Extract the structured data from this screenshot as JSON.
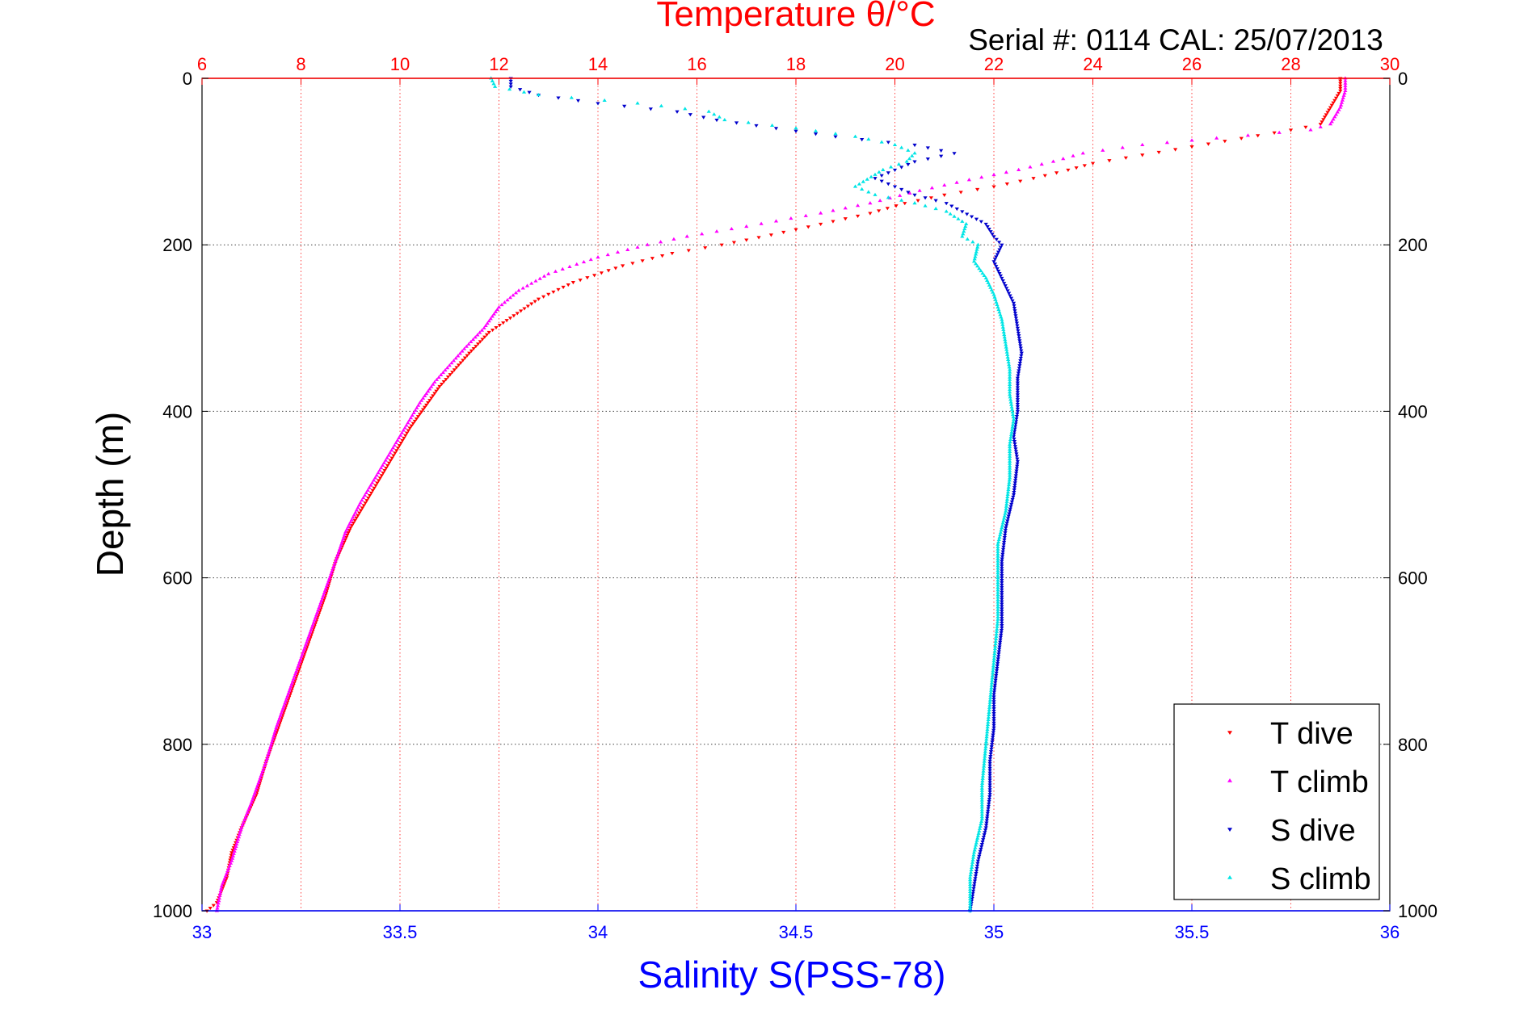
{
  "chart_data": {
    "type": "scatter",
    "title": "Temperature θ/°C",
    "subtitle": "Serial #: 0114  CAL: 25/07/2013",
    "ylabel": "Depth (m)",
    "xlabel_bottom": "Salinity S(PSS-78)",
    "xlabel_top": "Temperature θ/°C",
    "y_reversed": true,
    "ylim": [
      0,
      1000
    ],
    "xlim_salinity": [
      33,
      36
    ],
    "xlim_temperature": [
      6,
      30
    ],
    "yticks": [
      0,
      200,
      400,
      600,
      800,
      1000
    ],
    "salinity_ticks": [
      33,
      33.5,
      34,
      34.5,
      35,
      35.5,
      36
    ],
    "temperature_ticks": [
      6,
      8,
      10,
      12,
      14,
      16,
      18,
      20,
      22,
      24,
      26,
      28,
      30
    ],
    "grid": true,
    "legend_position": "bottom-right",
    "colors": {
      "temperature_axis": "#ff0000",
      "salinity_axis": "#0000ff",
      "t_dive": "#ff0000",
      "t_climb": "#ff00ff",
      "s_dive": "#0000cc",
      "s_climb": "#00e5e5"
    },
    "series": [
      {
        "name": "T dive",
        "axis": "temperature",
        "marker": "down-triangle",
        "points": [
          [
            29.0,
            0
          ],
          [
            29.0,
            15
          ],
          [
            28.8,
            35
          ],
          [
            28.6,
            55
          ],
          [
            28.0,
            62
          ],
          [
            27.0,
            72
          ],
          [
            26.0,
            82
          ],
          [
            25.0,
            92
          ],
          [
            24.0,
            102
          ],
          [
            23.5,
            110
          ],
          [
            22.8,
            120
          ],
          [
            22.0,
            130
          ],
          [
            21.0,
            140
          ],
          [
            20.2,
            150
          ],
          [
            19.5,
            162
          ],
          [
            18.5,
            175
          ],
          [
            17.5,
            188
          ],
          [
            16.5,
            200
          ],
          [
            15.5,
            210
          ],
          [
            14.5,
            225
          ],
          [
            13.5,
            245
          ],
          [
            12.8,
            265
          ],
          [
            12.3,
            285
          ],
          [
            11.8,
            305
          ],
          [
            11.4,
            330
          ],
          [
            11.1,
            350
          ],
          [
            10.8,
            370
          ],
          [
            10.5,
            395
          ],
          [
            10.2,
            420
          ],
          [
            9.9,
            450
          ],
          [
            9.6,
            480
          ],
          [
            9.3,
            510
          ],
          [
            9.0,
            540
          ],
          [
            8.7,
            580
          ],
          [
            8.5,
            620
          ],
          [
            8.2,
            670
          ],
          [
            7.9,
            720
          ],
          [
            7.6,
            770
          ],
          [
            7.3,
            820
          ],
          [
            7.1,
            860
          ],
          [
            6.8,
            900
          ],
          [
            6.6,
            930
          ],
          [
            6.5,
            960
          ],
          [
            6.3,
            990
          ],
          [
            6.1,
            1000
          ]
        ]
      },
      {
        "name": "T climb",
        "axis": "temperature",
        "marker": "up-triangle",
        "points": [
          [
            29.1,
            0
          ],
          [
            29.1,
            15
          ],
          [
            29.0,
            35
          ],
          [
            28.8,
            55
          ],
          [
            28.4,
            62
          ],
          [
            26.5,
            72
          ],
          [
            25.0,
            80
          ],
          [
            23.8,
            90
          ],
          [
            23.2,
            100
          ],
          [
            22.5,
            110
          ],
          [
            21.5,
            122
          ],
          [
            20.5,
            135
          ],
          [
            19.5,
            150
          ],
          [
            18.5,
            162
          ],
          [
            17.0,
            178
          ],
          [
            15.8,
            190
          ],
          [
            15.0,
            200
          ],
          [
            14.0,
            215
          ],
          [
            13.0,
            235
          ],
          [
            12.4,
            255
          ],
          [
            12.0,
            275
          ],
          [
            11.7,
            300
          ],
          [
            11.3,
            325
          ],
          [
            11.0,
            345
          ],
          [
            10.7,
            365
          ],
          [
            10.4,
            390
          ],
          [
            10.1,
            420
          ],
          [
            9.8,
            450
          ],
          [
            9.5,
            480
          ],
          [
            9.2,
            510
          ],
          [
            8.9,
            545
          ],
          [
            8.7,
            580
          ],
          [
            8.4,
            630
          ],
          [
            8.1,
            680
          ],
          [
            7.8,
            730
          ],
          [
            7.5,
            780
          ],
          [
            7.3,
            820
          ],
          [
            7.0,
            870
          ],
          [
            6.8,
            900
          ],
          [
            6.6,
            940
          ],
          [
            6.4,
            970
          ],
          [
            6.3,
            1000
          ]
        ]
      },
      {
        "name": "S dive",
        "axis": "salinity",
        "marker": "down-triangle",
        "points": [
          [
            33.78,
            0
          ],
          [
            33.78,
            10
          ],
          [
            33.85,
            20
          ],
          [
            34.0,
            30
          ],
          [
            34.2,
            40
          ],
          [
            34.3,
            50
          ],
          [
            34.45,
            60
          ],
          [
            34.6,
            70
          ],
          [
            34.8,
            80
          ],
          [
            34.9,
            90
          ],
          [
            34.8,
            100
          ],
          [
            34.75,
            110
          ],
          [
            34.7,
            120
          ],
          [
            34.75,
            130
          ],
          [
            34.8,
            140
          ],
          [
            34.88,
            150
          ],
          [
            34.92,
            160
          ],
          [
            34.98,
            175
          ],
          [
            35.0,
            190
          ],
          [
            35.02,
            200
          ],
          [
            35.0,
            220
          ],
          [
            35.02,
            240
          ],
          [
            35.05,
            270
          ],
          [
            35.06,
            300
          ],
          [
            35.07,
            330
          ],
          [
            35.06,
            360
          ],
          [
            35.06,
            400
          ],
          [
            35.05,
            430
          ],
          [
            35.06,
            460
          ],
          [
            35.05,
            500
          ],
          [
            35.03,
            540
          ],
          [
            35.02,
            580
          ],
          [
            35.02,
            620
          ],
          [
            35.02,
            660
          ],
          [
            35.01,
            700
          ],
          [
            35.0,
            740
          ],
          [
            35.0,
            780
          ],
          [
            34.99,
            820
          ],
          [
            34.99,
            860
          ],
          [
            34.98,
            900
          ],
          [
            34.96,
            940
          ],
          [
            34.95,
            970
          ],
          [
            34.94,
            1000
          ]
        ]
      },
      {
        "name": "S climb",
        "axis": "salinity",
        "marker": "up-triangle",
        "points": [
          [
            33.73,
            0
          ],
          [
            33.74,
            10
          ],
          [
            33.85,
            20
          ],
          [
            34.1,
            30
          ],
          [
            34.28,
            40
          ],
          [
            34.32,
            50
          ],
          [
            34.5,
            60
          ],
          [
            34.65,
            70
          ],
          [
            34.75,
            80
          ],
          [
            34.8,
            90
          ],
          [
            34.78,
            100
          ],
          [
            34.72,
            110
          ],
          [
            34.65,
            130
          ],
          [
            34.7,
            140
          ],
          [
            34.8,
            150
          ],
          [
            34.88,
            160
          ],
          [
            34.93,
            175
          ],
          [
            34.92,
            190
          ],
          [
            34.96,
            200
          ],
          [
            34.95,
            220
          ],
          [
            34.98,
            240
          ],
          [
            35.0,
            260
          ],
          [
            35.02,
            290
          ],
          [
            35.03,
            320
          ],
          [
            35.04,
            350
          ],
          [
            35.04,
            380
          ],
          [
            35.05,
            410
          ],
          [
            35.04,
            440
          ],
          [
            35.04,
            480
          ],
          [
            35.03,
            520
          ],
          [
            35.01,
            560
          ],
          [
            35.01,
            600
          ],
          [
            35.01,
            650
          ],
          [
            35.0,
            700
          ],
          [
            34.99,
            750
          ],
          [
            34.98,
            800
          ],
          [
            34.97,
            850
          ],
          [
            34.97,
            890
          ],
          [
            34.95,
            930
          ],
          [
            34.94,
            960
          ],
          [
            34.94,
            1000
          ]
        ]
      }
    ]
  }
}
